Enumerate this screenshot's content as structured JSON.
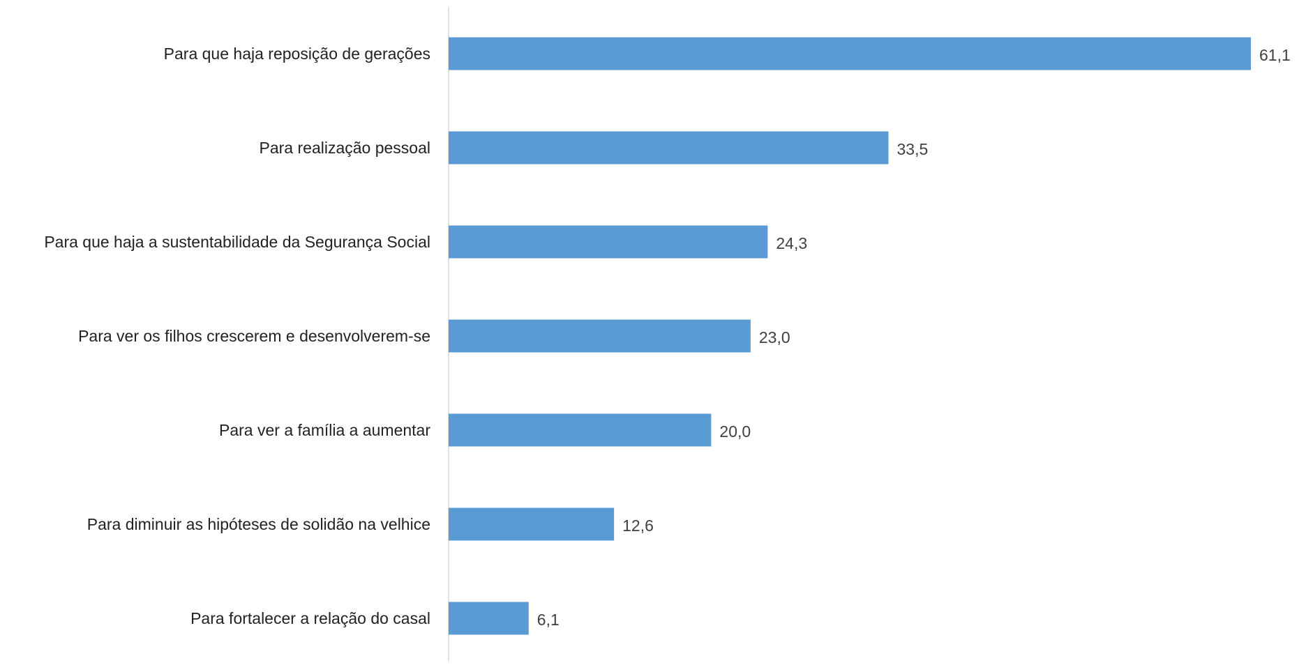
{
  "colors": {
    "bar": "#5b9bd5",
    "axis": "#d9d9d9",
    "category_text": "#222222",
    "value_text": "#404040"
  },
  "chart_data": {
    "type": "bar",
    "orientation": "horizontal",
    "title": "",
    "xlabel": "",
    "ylabel": "",
    "xlim": [
      0,
      61.1
    ],
    "grid": false,
    "legend": "none",
    "categories": [
      "Para que haja reposição de gerações",
      "Para realização pessoal",
      "Para que haja a sustentabilidade da Segurança Social",
      "Para ver os filhos crescerem e desenvolverem-se",
      "Para ver a família a aumentar",
      "Para diminuir as hipóteses de solidão na velhice",
      "Para fortalecer a relação do casal"
    ],
    "values": [
      61.1,
      33.5,
      24.3,
      23.0,
      20.0,
      12.6,
      6.1
    ],
    "value_labels": [
      "61,1",
      "33,5",
      "24,3",
      "23,0",
      "20,0",
      "12,6",
      "6,1"
    ]
  }
}
